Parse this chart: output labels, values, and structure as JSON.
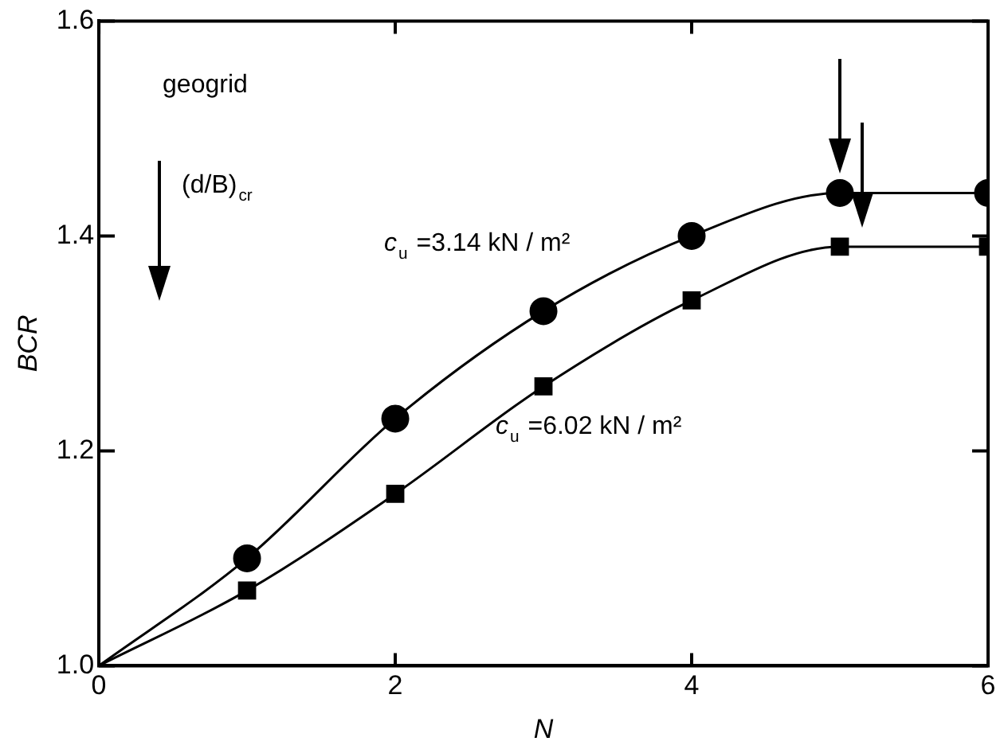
{
  "chart_data": {
    "type": "scatter",
    "xlabel": "N",
    "ylabel": "BCR",
    "xlim": [
      0,
      6
    ],
    "xticks": [
      0,
      2,
      4,
      6
    ],
    "ylim": [
      1,
      1.6
    ],
    "yticks": [
      {
        "value": 1,
        "label": "1.0"
      },
      {
        "value": 1.2,
        "label": "1.2"
      },
      {
        "value": 1.4,
        "label": "1.4"
      },
      {
        "value": 1.6,
        "label": "1.6"
      }
    ],
    "grid": false,
    "legend": false,
    "annotations": [
      "geogrid",
      "(d/B)$_{cr}$"
    ],
    "series": [
      {
        "name": "c$_{u}$ =3.14 kN / m²",
        "color": "#000000",
        "type": "scatter",
        "marker": "circle",
        "x": [
          1,
          2,
          3,
          4,
          5,
          6
        ],
        "values": [
          1.1,
          1.23,
          1.33,
          1.4,
          1.44,
          1.44
        ]
      },
      {
        "type": "line",
        "color": "#000000",
        "marker": "none",
        "line_style": "solid",
        "x": [
          0,
          1,
          2,
          3,
          4,
          5,
          6
        ],
        "values": [
          1,
          1.1,
          1.23,
          1.33,
          1.4,
          1.44,
          1.44
        ]
      },
      {
        "name": "c$_{u}$ =6.02 kN / m²",
        "color": "#000000",
        "type": "scatter",
        "marker": "square",
        "x": [
          1,
          2,
          3,
          4,
          5,
          6
        ],
        "values": [
          1.07,
          1.16,
          1.26,
          1.34,
          1.39,
          1.39
        ]
      },
      {
        "type": "line",
        "color": "#000000",
        "marker": "none",
        "line_style": "solid",
        "x": [
          0,
          1,
          2,
          3,
          4,
          5,
          6
        ],
        "values": [
          1,
          1.07,
          1.16,
          1.26,
          1.34,
          1.39,
          1.39
        ]
      }
    ]
  }
}
